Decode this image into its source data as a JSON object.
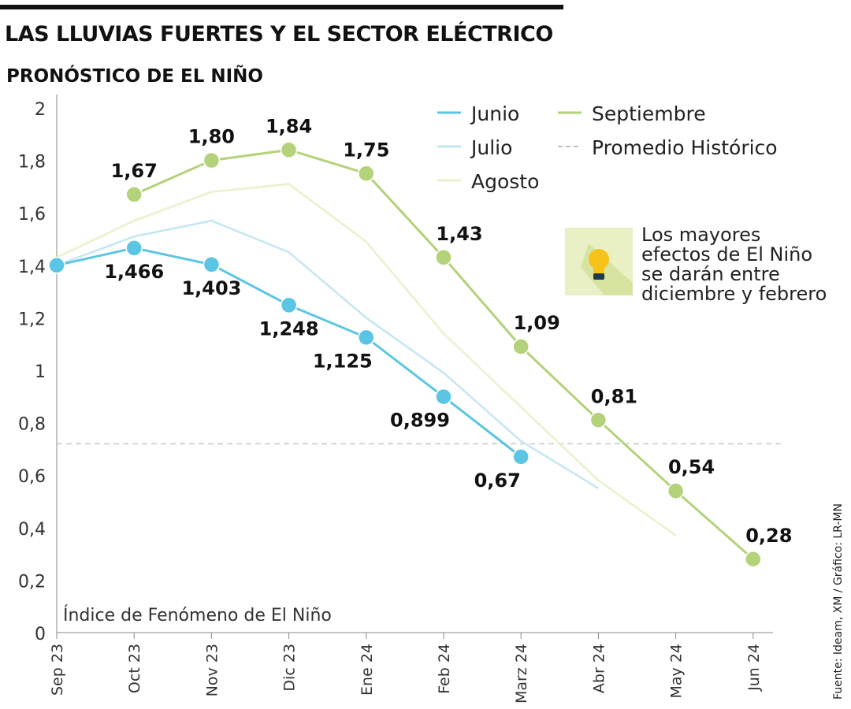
{
  "header": {
    "title": "LAS LLUVIAS FUERTES Y EL SECTOR ELÉCTRICO",
    "subtitle": "PRONÓSTICO DE EL NIÑO"
  },
  "note": {
    "lines": [
      "Los mayores",
      "efectos de El Niño",
      "se darán entre",
      "diciembre y febrero"
    ],
    "icon": "lightbulb-icon"
  },
  "source": "Fuente: Ideam, XM / Gráfico: LR-MN",
  "chart_data": {
    "type": "line",
    "title": "PRONÓSTICO DE EL NIÑO",
    "ylabel": "Índice de Fenómeno de El Niño",
    "ylim": [
      0,
      2
    ],
    "yticks": [
      "0",
      "0,2",
      "0,4",
      "0,6",
      "0,8",
      "1",
      "1,2",
      "1,4",
      "1,6",
      "1,8",
      "2"
    ],
    "categories": [
      "Sep 23",
      "Oct 23",
      "Nov 23",
      "Dic 23",
      "Ene 24",
      "Feb 24",
      "Marz 24",
      "Abr 24",
      "May 24",
      "Jun 24"
    ],
    "legend_position": "top-right",
    "grid": false,
    "series": [
      {
        "name": "Junio",
        "color": "#5bc6e4",
        "values": [
          1.4,
          1.466,
          1.403,
          1.248,
          1.125,
          0.899,
          0.67,
          null,
          null,
          null
        ],
        "labels": [
          null,
          "1,466",
          "1,403",
          "1,248",
          "1,125",
          "0,899",
          "0,67",
          null,
          null,
          null
        ],
        "markers": true
      },
      {
        "name": "Julio",
        "color": "#c4e6f1",
        "values": [
          1.4,
          1.51,
          1.57,
          1.45,
          1.2,
          0.99,
          0.73,
          0.55,
          null,
          null
        ],
        "markers": false
      },
      {
        "name": "Agosto",
        "color": "#e9f1cc",
        "values": [
          1.43,
          1.57,
          1.68,
          1.71,
          1.49,
          1.14,
          0.86,
          0.58,
          0.37,
          null
        ],
        "markers": false
      },
      {
        "name": "Septiembre",
        "color": "#b3d27a",
        "values": [
          null,
          1.67,
          1.8,
          1.84,
          1.75,
          1.43,
          1.09,
          0.81,
          0.54,
          0.28
        ],
        "labels": [
          null,
          "1,67",
          "1,80",
          "1,84",
          "1,75",
          "1,43",
          "1,09",
          "0,81",
          "0,54",
          "0,28"
        ],
        "markers": true
      }
    ],
    "reference": {
      "name": "Promedio Histórico",
      "value": 0.72,
      "color": "#aaaaaa",
      "style": "dashed"
    }
  }
}
